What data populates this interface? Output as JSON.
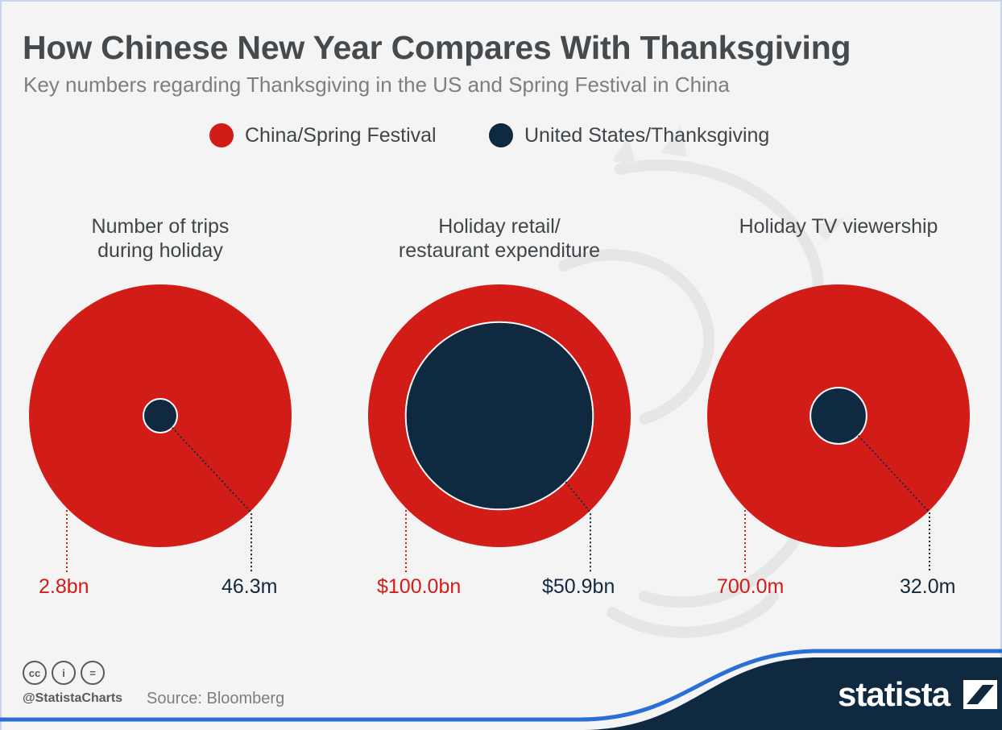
{
  "header": {
    "title": "How Chinese New Year Compares With Thanksgiving",
    "subtitle": "Key numbers regarding Thanksgiving in the US and Spring Festival in China"
  },
  "legend": [
    {
      "label": "China/Spring Festival",
      "color": "#d21c17"
    },
    {
      "label": "United States/Thanksgiving",
      "color": "#0f2a40"
    }
  ],
  "chart_data": {
    "type": "bubble-comparison",
    "series": [
      {
        "name": "China/Spring Festival",
        "color": "#d21c17"
      },
      {
        "name": "United States/Thanksgiving",
        "color": "#0f2a40"
      }
    ],
    "panels": [
      {
        "title_lines": [
          "Number of trips",
          "during holiday"
        ],
        "china": {
          "value": 2800000000,
          "label": "2.8bn"
        },
        "us": {
          "value": 46300000,
          "label": "46.3m"
        }
      },
      {
        "title_lines": [
          "Holiday retail/",
          "restaurant expenditure"
        ],
        "china": {
          "value": 100000000000,
          "label": "$100.0bn"
        },
        "us": {
          "value": 50900000000,
          "label": "$50.9bn"
        }
      },
      {
        "title_lines": [
          "Holiday TV viewership"
        ],
        "china": {
          "value": 700000000,
          "label": "700.0m"
        },
        "us": {
          "value": 32000000,
          "label": "32.0m"
        }
      }
    ]
  },
  "footer": {
    "icons": [
      "cc-icon",
      "attribution-icon",
      "no-derivatives-icon"
    ],
    "icon_glyphs": [
      "cc",
      "i",
      "="
    ],
    "handle": "@StatistaCharts",
    "source": "Source: Bloomberg",
    "brand": "statista",
    "brand_bar_color": "#0f2a40",
    "brand_accent_color": "#2a6fd6"
  }
}
